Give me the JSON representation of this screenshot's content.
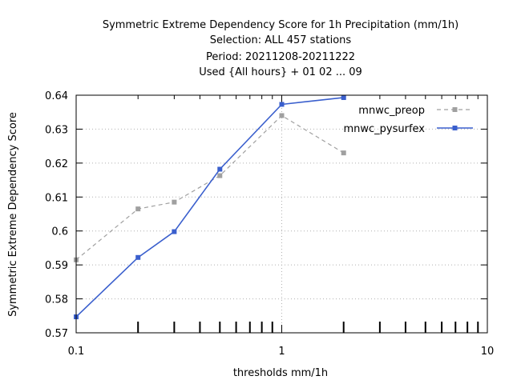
{
  "chart_data": {
    "type": "line",
    "title_lines": [
      "Symmetric Extreme Dependency Score  for 1h Precipitation (mm/1h)",
      "Selection: ALL    457 stations",
      "Period: 20211208-20211222",
      "Used {All hours} + 01 02 ... 09"
    ],
    "xlabel": "thresholds mm/1h",
    "ylabel": "Symmetric Extreme Dependency Score",
    "x_scale": "log",
    "xlim": [
      0.1,
      10
    ],
    "ylim": [
      0.57,
      0.64
    ],
    "x_ticks": [
      0.1,
      1,
      10
    ],
    "x_tick_labels": [
      "0.1",
      "1",
      "10"
    ],
    "y_ticks": [
      0.57,
      0.58,
      0.59,
      0.6,
      0.61,
      0.62,
      0.63,
      0.64
    ],
    "y_tick_labels": [
      "0.57",
      "0.58",
      "0.59",
      "0.6",
      "0.61",
      "0.62",
      "0.63",
      "0.64"
    ],
    "grid": true,
    "legend_position": "top-right",
    "series": [
      {
        "name": "mnwc_preop",
        "color": "#a0a0a0",
        "dash": true,
        "x": [
          0.1,
          0.2,
          0.3,
          0.5,
          1,
          2
        ],
        "y": [
          0.5915,
          0.6065,
          0.6085,
          0.6163,
          0.634,
          0.623
        ]
      },
      {
        "name": "mnwc_pysurfex",
        "color": "#3a5fcd",
        "dash": false,
        "x": [
          0.1,
          0.2,
          0.3,
          0.5,
          1,
          2
        ],
        "y": [
          0.5747,
          0.5922,
          0.5998,
          0.6182,
          0.6373,
          0.6393
        ]
      }
    ]
  }
}
